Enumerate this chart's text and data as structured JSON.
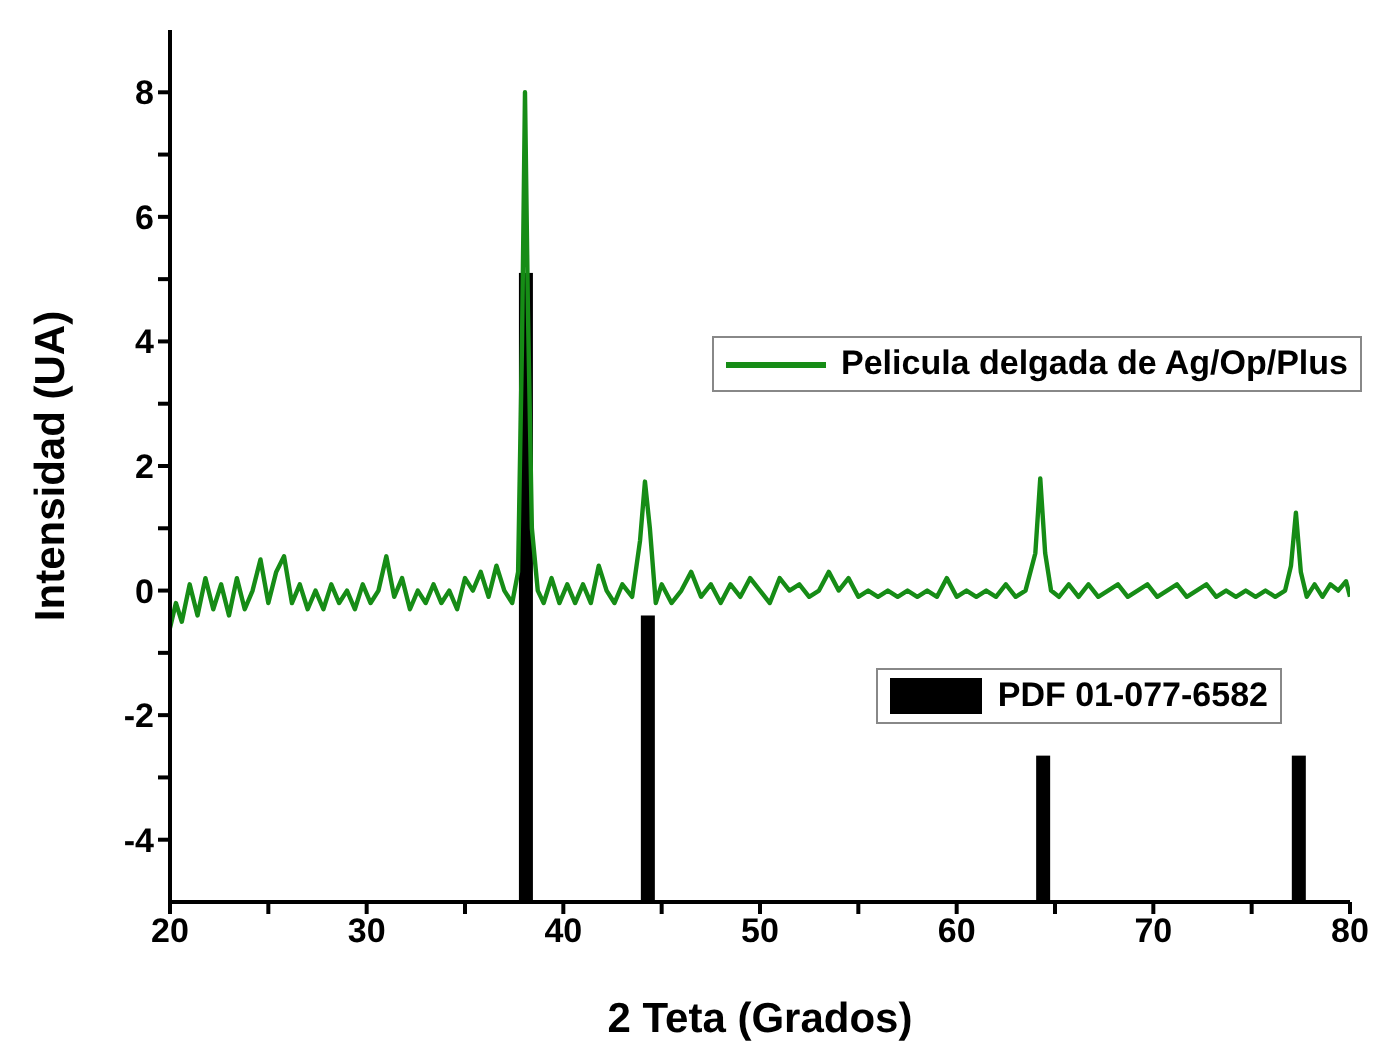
{
  "chart_data": {
    "type": "line",
    "xlabel": "2 Teta (Grados)",
    "ylabel": "Intensidad (UA)",
    "xlim": [
      20,
      80
    ],
    "xticks": [
      20,
      {
        "value": 25,
        "label": null
      },
      30,
      {
        "value": 35,
        "label": null
      },
      40,
      {
        "value": 45,
        "label": null
      },
      50,
      {
        "value": 55,
        "label": null
      },
      60,
      {
        "value": 65,
        "label": null
      },
      70,
      {
        "value": 75,
        "label": null
      },
      80
    ],
    "ylim": [
      -5,
      9
    ],
    "yticks": [
      -4,
      {
        "value": -3,
        "label": null
      },
      -2,
      {
        "value": -1,
        "label": null
      },
      0,
      {
        "value": 1,
        "label": null
      },
      2,
      {
        "value": 3,
        "label": null
      },
      4,
      {
        "value": 5,
        "label": null
      },
      6,
      {
        "value": 7,
        "label": null
      },
      8
    ],
    "legend": "right",
    "series": [
      {
        "name": "Pelicula delgada de Ag/Op/Plus",
        "color": "#168c16",
        "x": [
          20,
          20.3,
          20.6,
          21,
          21.4,
          21.8,
          22.2,
          22.6,
          23,
          23.4,
          23.8,
          24.2,
          24.6,
          25,
          25.4,
          25.8,
          26.2,
          26.6,
          27,
          27.4,
          27.8,
          28.2,
          28.6,
          29,
          29.4,
          29.8,
          30.2,
          30.6,
          31,
          31.4,
          31.8,
          32.2,
          32.6,
          33,
          33.4,
          33.8,
          34.2,
          34.6,
          35,
          35.4,
          35.8,
          36.2,
          36.6,
          37,
          37.4,
          37.7,
          37.9,
          38.05,
          38.2,
          38.4,
          38.7,
          39,
          39.4,
          39.8,
          40.2,
          40.6,
          41,
          41.4,
          41.8,
          42.2,
          42.6,
          43,
          43.5,
          43.9,
          44.15,
          44.4,
          44.7,
          45,
          45.5,
          46,
          46.5,
          47,
          47.5,
          48,
          48.5,
          49,
          49.5,
          50,
          50.5,
          51,
          51.5,
          52,
          52.5,
          53,
          53.5,
          54,
          54.5,
          55,
          55.5,
          56,
          56.5,
          57,
          57.5,
          58,
          58.5,
          59,
          59.5,
          60,
          60.5,
          61,
          61.5,
          62,
          62.5,
          63,
          63.5,
          64,
          64.25,
          64.5,
          64.8,
          65.2,
          65.7,
          66.2,
          66.7,
          67.2,
          67.7,
          68.2,
          68.7,
          69.2,
          69.7,
          70.2,
          70.7,
          71.2,
          71.7,
          72.2,
          72.7,
          73.2,
          73.7,
          74.2,
          74.7,
          75.2,
          75.7,
          76.2,
          76.7,
          77,
          77.25,
          77.5,
          77.8,
          78.2,
          78.6,
          79,
          79.4,
          79.8,
          80
        ],
        "values": [
          -0.6,
          -0.2,
          -0.5,
          0.1,
          -0.4,
          0.2,
          -0.3,
          0.1,
          -0.4,
          0.2,
          -0.3,
          0,
          0.5,
          -0.2,
          0.3,
          0.55,
          -0.2,
          0.1,
          -0.3,
          0,
          -0.3,
          0.1,
          -0.2,
          0,
          -0.3,
          0.1,
          -0.2,
          0,
          0.55,
          -0.1,
          0.2,
          -0.3,
          0,
          -0.2,
          0.1,
          -0.2,
          0,
          -0.3,
          0.2,
          0,
          0.3,
          -0.1,
          0.4,
          0,
          -0.2,
          0.3,
          4,
          8,
          4.5,
          1,
          0,
          -0.2,
          0.2,
          -0.2,
          0.1,
          -0.2,
          0.1,
          -0.2,
          0.4,
          0,
          -0.2,
          0.1,
          -0.1,
          0.8,
          1.75,
          1,
          -0.2,
          0.1,
          -0.2,
          0,
          0.3,
          -0.1,
          0.1,
          -0.2,
          0.1,
          -0.1,
          0.2,
          0,
          -0.2,
          0.2,
          0,
          0.1,
          -0.1,
          0,
          0.3,
          0,
          0.2,
          -0.1,
          0,
          -0.1,
          0,
          -0.1,
          0,
          -0.1,
          0,
          -0.1,
          0.2,
          -0.1,
          0,
          -0.1,
          0,
          -0.1,
          0.1,
          -0.1,
          0,
          0.6,
          1.8,
          0.6,
          0,
          -0.1,
          0.1,
          -0.1,
          0.1,
          -0.1,
          0,
          0.1,
          -0.1,
          0,
          0.1,
          -0.1,
          0,
          0.1,
          -0.1,
          0,
          0.1,
          -0.1,
          0,
          -0.1,
          0,
          -0.1,
          0,
          -0.1,
          0,
          0.4,
          1.25,
          0.3,
          -0.1,
          0.1,
          -0.1,
          0.1,
          0,
          0.15,
          -0.1
        ]
      },
      {
        "name": "PDF 01-077-6582",
        "type": "bar",
        "color": "#000000",
        "x": [
          38.1,
          44.3,
          64.4,
          77.4
        ],
        "base": [
          -5,
          -5,
          -5,
          -5
        ],
        "values": [
          10.1,
          4.6,
          2.35,
          2.35
        ]
      }
    ]
  }
}
